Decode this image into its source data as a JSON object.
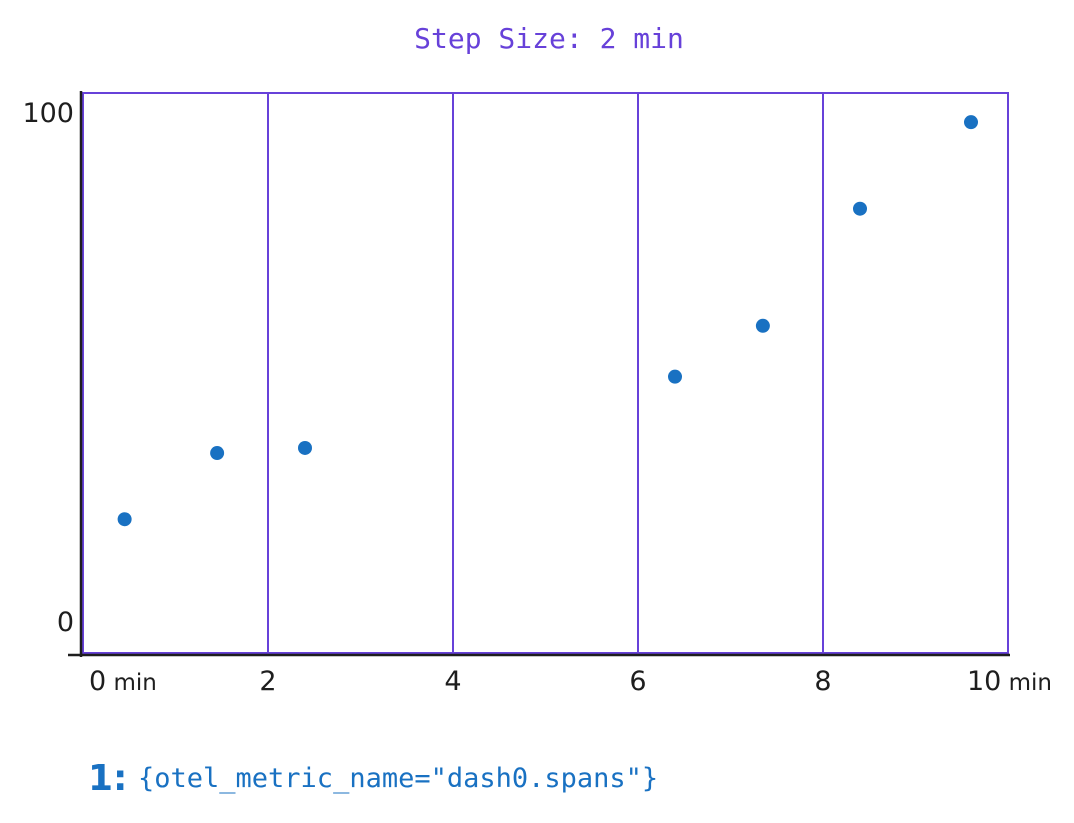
{
  "chart_data": {
    "type": "scatter",
    "title": "Step Size: 2 min",
    "xlabel": "",
    "ylabel": "",
    "xlim": [
      0,
      10
    ],
    "ylim": [
      0,
      100
    ],
    "x_ticks": [
      {
        "value": 0,
        "label": "0",
        "unit": "min"
      },
      {
        "value": 2,
        "label": "2",
        "unit": ""
      },
      {
        "value": 4,
        "label": "4",
        "unit": ""
      },
      {
        "value": 6,
        "label": "6",
        "unit": ""
      },
      {
        "value": 8,
        "label": "8",
        "unit": ""
      },
      {
        "value": 10,
        "label": "10",
        "unit": "min"
      }
    ],
    "y_ticks": [
      {
        "value": 0,
        "label": "0"
      },
      {
        "value": 100,
        "label": "100"
      }
    ],
    "step_boundaries": [
      0,
      2,
      4,
      6,
      8,
      10
    ],
    "series": [
      {
        "index_label": "1:",
        "name": "{otel_metric_name=\"dash0.spans\"}",
        "color": "#1971c2",
        "points": [
          {
            "x": 0.45,
            "y": 20
          },
          {
            "x": 1.45,
            "y": 33
          },
          {
            "x": 2.4,
            "y": 34
          },
          {
            "x": 6.4,
            "y": 48
          },
          {
            "x": 7.35,
            "y": 58
          },
          {
            "x": 8.4,
            "y": 81
          },
          {
            "x": 9.6,
            "y": 98
          }
        ]
      }
    ],
    "grid": true,
    "legend_position": "bottom-left"
  },
  "colors": {
    "frame": "#6741d9",
    "axis": "#1e1e1e",
    "point": "#1971c2"
  }
}
